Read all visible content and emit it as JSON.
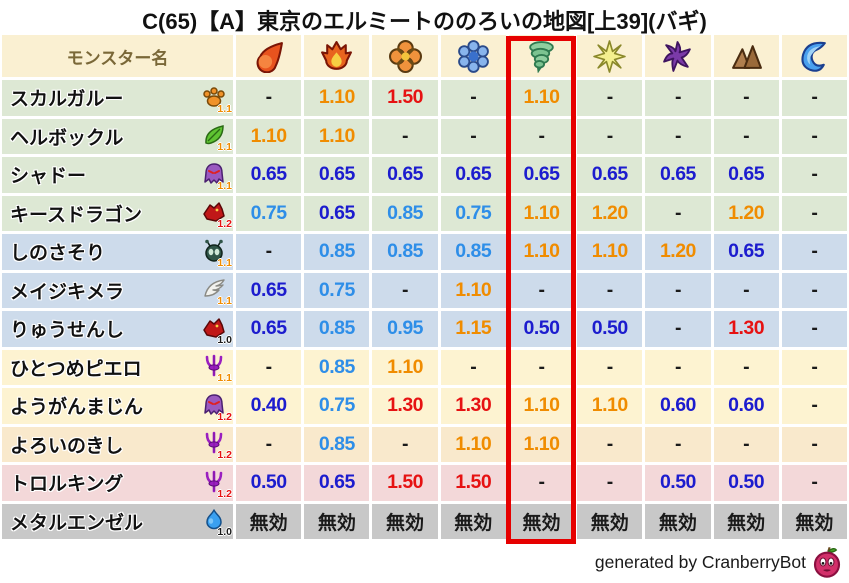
{
  "title": "C(65)【A】東京のエルミートののろいの地図[上39](バギ)",
  "footer": {
    "credit": "generated by CranberryBot",
    "icon": "cranberry-slime-icon"
  },
  "palette": {
    "header_bg": "#faf0d2",
    "header_text": "#7a6838",
    "row_groups": {
      "green": "#dde8d4",
      "blue": "#cddbeb",
      "cream": "#fdf3d1",
      "peach": "#f9e9cc",
      "pink": "#f3d8d9",
      "gray": "#c8c8c8"
    },
    "value_neutral": "#1a1a1a",
    "value_strong_resist": "#1c1cce",
    "value_resist": "#2e8ee8",
    "value_weak": "#f08c00",
    "value_very_weak": "#e61212",
    "modifier_colors": {
      "1.0": "#1a1a1a",
      "1.1": "#f08c00",
      "1.2": "#e61212"
    },
    "highlight_border": "#e60000"
  },
  "table": {
    "name_header": "モンスター名",
    "element_columns": [
      {
        "id": "mera-fireball"
      },
      {
        "id": "gira-flame"
      },
      {
        "id": "io-explosion"
      },
      {
        "id": "hyado-ice"
      },
      {
        "id": "bagi-wind",
        "highlighted": true
      },
      {
        "id": "dein-light"
      },
      {
        "id": "doruma-dark"
      },
      {
        "id": "earth-rock"
      },
      {
        "id": "water-wave"
      }
    ],
    "highlight": {
      "column_index": 4
    },
    "immune_label": "無効",
    "rows": [
      {
        "name": "スカルガルー",
        "family": "paw",
        "modifier": "1.1",
        "group": "green",
        "values": [
          "-",
          "1.10",
          "1.50",
          "-",
          "1.10",
          "-",
          "-",
          "-",
          "-"
        ]
      },
      {
        "name": "ヘルボックル",
        "family": "leaf",
        "modifier": "1.1",
        "group": "green",
        "values": [
          "1.10",
          "1.10",
          "-",
          "-",
          "-",
          "-",
          "-",
          "-",
          "-"
        ]
      },
      {
        "name": "シャドー",
        "family": "ghost",
        "modifier": "1.1",
        "group": "green",
        "values": [
          "0.65",
          "0.65",
          "0.65",
          "0.65",
          "0.65",
          "0.65",
          "0.65",
          "0.65",
          "-"
        ]
      },
      {
        "name": "キースドラゴン",
        "family": "dragon",
        "modifier": "1.2",
        "group": "green",
        "values": [
          "0.75",
          "0.65",
          "0.85",
          "0.75",
          "1.10",
          "1.20",
          "-",
          "1.20",
          "-"
        ]
      },
      {
        "name": "しのさそり",
        "family": "bug",
        "modifier": "1.1",
        "group": "blue",
        "values": [
          "-",
          "0.85",
          "0.85",
          "0.85",
          "1.10",
          "1.10",
          "1.20",
          "0.65",
          "-"
        ]
      },
      {
        "name": "メイジキメラ",
        "family": "wing",
        "modifier": "1.1",
        "group": "blue",
        "values": [
          "0.65",
          "0.75",
          "-",
          "1.10",
          "-",
          "-",
          "-",
          "-",
          "-"
        ]
      },
      {
        "name": "りゅうせんし",
        "family": "dragon",
        "modifier": "1.0",
        "group": "blue",
        "values": [
          "0.65",
          "0.85",
          "0.95",
          "1.15",
          "0.50",
          "0.50",
          "-",
          "1.30",
          "-"
        ]
      },
      {
        "name": "ひとつめピエロ",
        "family": "trident",
        "modifier": "1.1",
        "group": "cream",
        "values": [
          "-",
          "0.85",
          "1.10",
          "-",
          "-",
          "-",
          "-",
          "-",
          "-"
        ]
      },
      {
        "name": "ようがんまじん",
        "family": "ghost",
        "modifier": "1.2",
        "group": "cream",
        "values": [
          "0.40",
          "0.75",
          "1.30",
          "1.30",
          "1.10",
          "1.10",
          "0.60",
          "0.60",
          "-"
        ]
      },
      {
        "name": "よろいのきし",
        "family": "trident",
        "modifier": "1.2",
        "group": "peach",
        "values": [
          "-",
          "0.85",
          "-",
          "1.10",
          "1.10",
          "-",
          "-",
          "-",
          "-"
        ]
      },
      {
        "name": "トロルキング",
        "family": "trident",
        "modifier": "1.2",
        "group": "pink",
        "values": [
          "0.50",
          "0.65",
          "1.50",
          "1.50",
          "-",
          "-",
          "0.50",
          "0.50",
          "-"
        ]
      },
      {
        "name": "メタルエンゼル",
        "family": "slime",
        "modifier": "1.0",
        "group": "gray",
        "values": [
          "無効",
          "無効",
          "無効",
          "無効",
          "無効",
          "無効",
          "無効",
          "無効",
          "無効"
        ]
      }
    ]
  }
}
